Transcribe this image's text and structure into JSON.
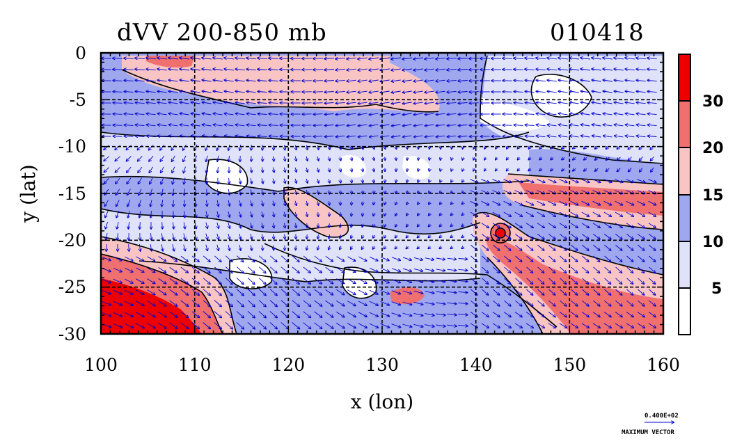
{
  "header": {
    "title": "dVV 200-850 mb",
    "date": "010418"
  },
  "axes": {
    "xlabel": "x (lon)",
    "ylabel": "y (lat)",
    "xticks": [
      "100",
      "110",
      "120",
      "130",
      "140",
      "150",
      "160"
    ],
    "yticks": [
      "0",
      "-5",
      "-10",
      "-15",
      "-20",
      "-25",
      "-30"
    ],
    "xrange": [
      100,
      160
    ],
    "yrange": [
      -30,
      0
    ]
  },
  "colorbar": {
    "labels": [
      "30",
      "20",
      "15",
      "10",
      "5"
    ],
    "colors": [
      "#ee0000",
      "#f07070",
      "#f8c4c4",
      "#9fa8ee",
      "#dfe2f8",
      "#ffffff"
    ]
  },
  "max_vector": {
    "value": "0.400E+02",
    "label": "MAXIMUM VECTOR"
  },
  "styles": {
    "vector_color": "#0000cc",
    "contour_color": "#000000",
    "grid_color": "#000000"
  }
}
